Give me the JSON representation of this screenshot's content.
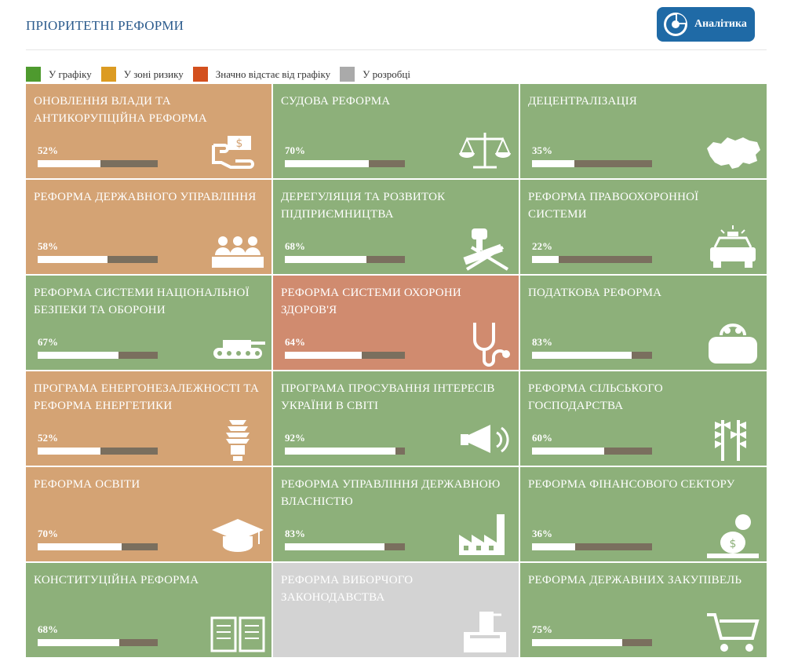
{
  "header": {
    "title": "ПРІОРИТЕТНІ РЕФОРМИ",
    "analytics_label": "Аналітика"
  },
  "legend": [
    {
      "label": "У графіку",
      "color": "#4e9a2e"
    },
    {
      "label": "У зоні ризику",
      "color": "#dc9b22"
    },
    {
      "label": "Значно відстає від графіку",
      "color": "#d3501e"
    },
    {
      "label": "У розробці",
      "color": "#aaaaaa"
    }
  ],
  "reforms": [
    {
      "name": "Оновлення влади та антикорупційна реформа",
      "percent": "52%",
      "status": "orange",
      "icon": "money-hand-icon",
      "progress": 52
    },
    {
      "name": "Судова реформа",
      "percent": "70%",
      "status": "green",
      "icon": "scales-icon",
      "progress": 70
    },
    {
      "name": "Децентралізація",
      "percent": "35%",
      "status": "green",
      "icon": "ukraine-map-icon",
      "progress": 35
    },
    {
      "name": "Реформа державного управління",
      "percent": "58%",
      "status": "orange",
      "icon": "officials-icon",
      "progress": 58
    },
    {
      "name": "Дерегуляція та розвиток підприємництва",
      "percent": "68%",
      "status": "green",
      "icon": "stamp-icon",
      "progress": 68
    },
    {
      "name": "Реформа правоохоронної системи",
      "percent": "22%",
      "status": "green",
      "icon": "police-car-icon",
      "progress": 22
    },
    {
      "name": "Реформа системи національної безпеки та оборони",
      "percent": "67%",
      "status": "green",
      "icon": "tank-icon",
      "progress": 67
    },
    {
      "name": "Реформа системи охорони здоров'я",
      "percent": "64%",
      "status": "red",
      "icon": "stethoscope-icon",
      "progress": 64
    },
    {
      "name": "Податкова реформа",
      "percent": "83%",
      "status": "green",
      "icon": "purse-icon",
      "progress": 83
    },
    {
      "name": "Програма енергонезалежності та реформа енергетики",
      "percent": "52%",
      "status": "orange",
      "icon": "light-bulb-icon",
      "progress": 52
    },
    {
      "name": "Програма просування інтересів України в світі",
      "percent": "92%",
      "status": "green",
      "icon": "megaphone-icon",
      "progress": 92
    },
    {
      "name": "Реформа сільського господарства",
      "percent": "60%",
      "status": "green",
      "icon": "wheat-icon",
      "progress": 60
    },
    {
      "name": "Реформа освіти",
      "percent": "70%",
      "status": "orange",
      "icon": "graduation-cap-icon",
      "progress": 70
    },
    {
      "name": "Реформа управління державною власністю",
      "percent": "83%",
      "status": "green",
      "icon": "factory-icon",
      "progress": 83
    },
    {
      "name": "Реформа фінансового сектору",
      "percent": "36%",
      "status": "green",
      "icon": "coins-icon",
      "progress": 36
    },
    {
      "name": "Конституційна реформа",
      "percent": "68%",
      "status": "green",
      "icon": "book-icon",
      "progress": 68
    },
    {
      "name": "Реформа виборчого законодавства",
      "percent": "",
      "status": "gray",
      "icon": "ballot-box-icon",
      "progress": null
    },
    {
      "name": "Реформа державних закупівель",
      "percent": "75%",
      "status": "green",
      "icon": "shopping-cart-icon",
      "progress": 75
    }
  ]
}
